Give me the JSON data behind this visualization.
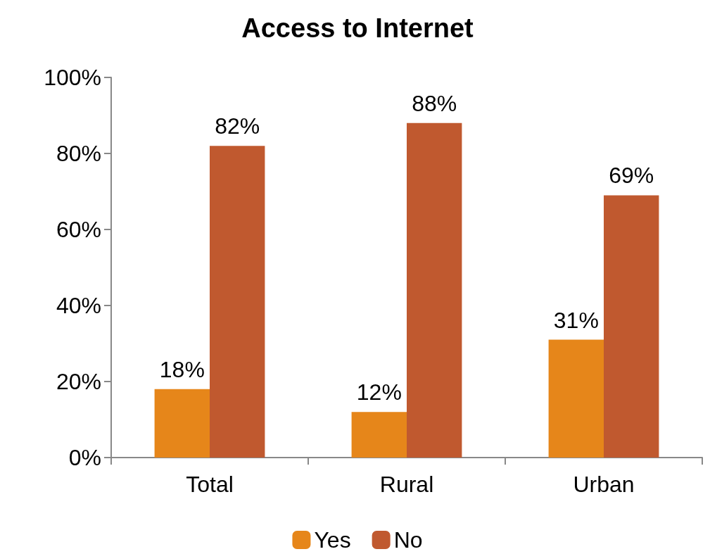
{
  "chart_data": {
    "type": "bar",
    "title": "Access to Internet",
    "categories": [
      "Total",
      "Rural",
      "Urban"
    ],
    "series": [
      {
        "name": "Yes",
        "color": "#e6861a",
        "values": [
          18,
          12,
          31
        ],
        "value_labels": [
          "18%",
          "12%",
          "31%"
        ]
      },
      {
        "name": "No",
        "color": "#c0592f",
        "values": [
          82,
          88,
          69
        ],
        "value_labels": [
          "82%",
          "88%",
          "69%"
        ]
      }
    ],
    "ylim": [
      0,
      100
    ],
    "yticks": [
      {
        "value": 0,
        "label": "0%"
      },
      {
        "value": 20,
        "label": "20%"
      },
      {
        "value": 40,
        "label": "40%"
      },
      {
        "value": 60,
        "label": "60%"
      },
      {
        "value": 80,
        "label": "80%"
      },
      {
        "value": 100,
        "label": "100%"
      }
    ],
    "grid": false,
    "legend": "bottom"
  }
}
